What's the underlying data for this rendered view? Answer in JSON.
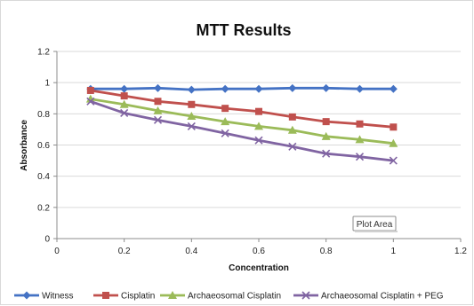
{
  "chart_data": {
    "type": "line",
    "title": "MTT Results",
    "xlabel": "Concentration",
    "ylabel": "Absorbance",
    "xlim": [
      0,
      1.2
    ],
    "ylim": [
      0,
      1.2
    ],
    "xticks": [
      0,
      0.2,
      0.4,
      0.6,
      0.8,
      1,
      1.2
    ],
    "yticks": [
      0,
      0.2,
      0.4,
      0.6,
      0.8,
      1,
      1.2
    ],
    "grid": "horizontal",
    "legend_position": "bottom",
    "x": [
      0.1,
      0.2,
      0.3,
      0.4,
      0.5,
      0.6,
      0.7,
      0.8,
      0.9,
      1.0
    ],
    "series": [
      {
        "name": "Witness",
        "color": "#4472c4",
        "marker": "diamond",
        "values": [
          0.96,
          0.96,
          0.965,
          0.955,
          0.96,
          0.96,
          0.965,
          0.965,
          0.96,
          0.96
        ]
      },
      {
        "name": "Cisplatin",
        "color": "#c0504d",
        "marker": "square",
        "values": [
          0.95,
          0.915,
          0.88,
          0.86,
          0.835,
          0.815,
          0.78,
          0.75,
          0.735,
          0.715
        ]
      },
      {
        "name": "Archaeosomal Cisplatin",
        "color": "#9bbb59",
        "marker": "triangle",
        "values": [
          0.895,
          0.86,
          0.82,
          0.785,
          0.75,
          0.72,
          0.695,
          0.655,
          0.635,
          0.61
        ]
      },
      {
        "name": "Archaeosomal Cisplatin + PEG",
        "color": "#8064a2",
        "marker": "x",
        "values": [
          0.88,
          0.805,
          0.76,
          0.72,
          0.675,
          0.63,
          0.59,
          0.545,
          0.525,
          0.5
        ]
      }
    ]
  },
  "tooltip": {
    "label": "Plot Area"
  }
}
